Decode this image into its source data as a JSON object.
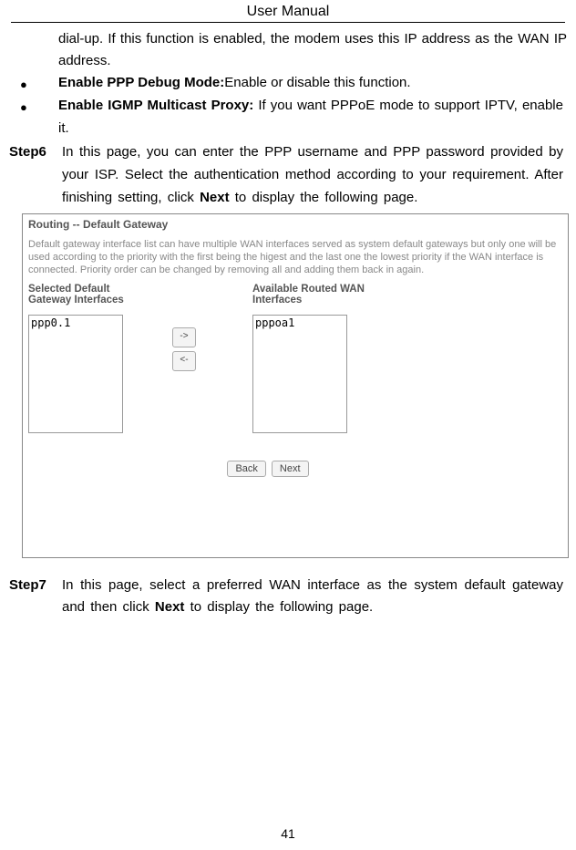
{
  "header": {
    "title": "User Manual"
  },
  "intro_tail": "dial-up. If this function is enabled, the modem uses this IP address as the WAN IP address.",
  "bullets": [
    {
      "bold": "Enable PPP Debug Mode:",
      "rest": "Enable or disable this function."
    },
    {
      "bold": "Enable IGMP Multicast Proxy: ",
      "rest": "If you want PPPoE mode to support IPTV, enable it."
    }
  ],
  "step6": {
    "label": "Step6",
    "text_before": "In this page, you can enter the PPP username and PPP password provided by your ISP. Select the authentication method according to your requirement. After finishing setting, click ",
    "bold_word": "Next",
    "text_after": " to display the following page."
  },
  "screenshot": {
    "title": "Routing -- Default Gateway",
    "desc": "Default gateway interface list can have multiple WAN interfaces served as system default gateways but only one will be used according to the priority with the first being the higest and the last one the lowest priority if the WAN interface is connected. Priority order can be changed by removing all and adding them back in again.",
    "left_label": "Selected Default\nGateway Interfaces",
    "right_label": "Available Routed WAN\nInterfaces",
    "left_item": "ppp0.1",
    "right_item": "pppoa1",
    "arrow_right": "->",
    "arrow_left": "<-",
    "back_btn": "Back",
    "next_btn": "Next"
  },
  "step7": {
    "label": "Step7",
    "text_before": "In this page, select a preferred WAN interface as the system default gateway and then click ",
    "bold_word": "Next",
    "text_after": " to display the following page."
  },
  "page_number": "41"
}
